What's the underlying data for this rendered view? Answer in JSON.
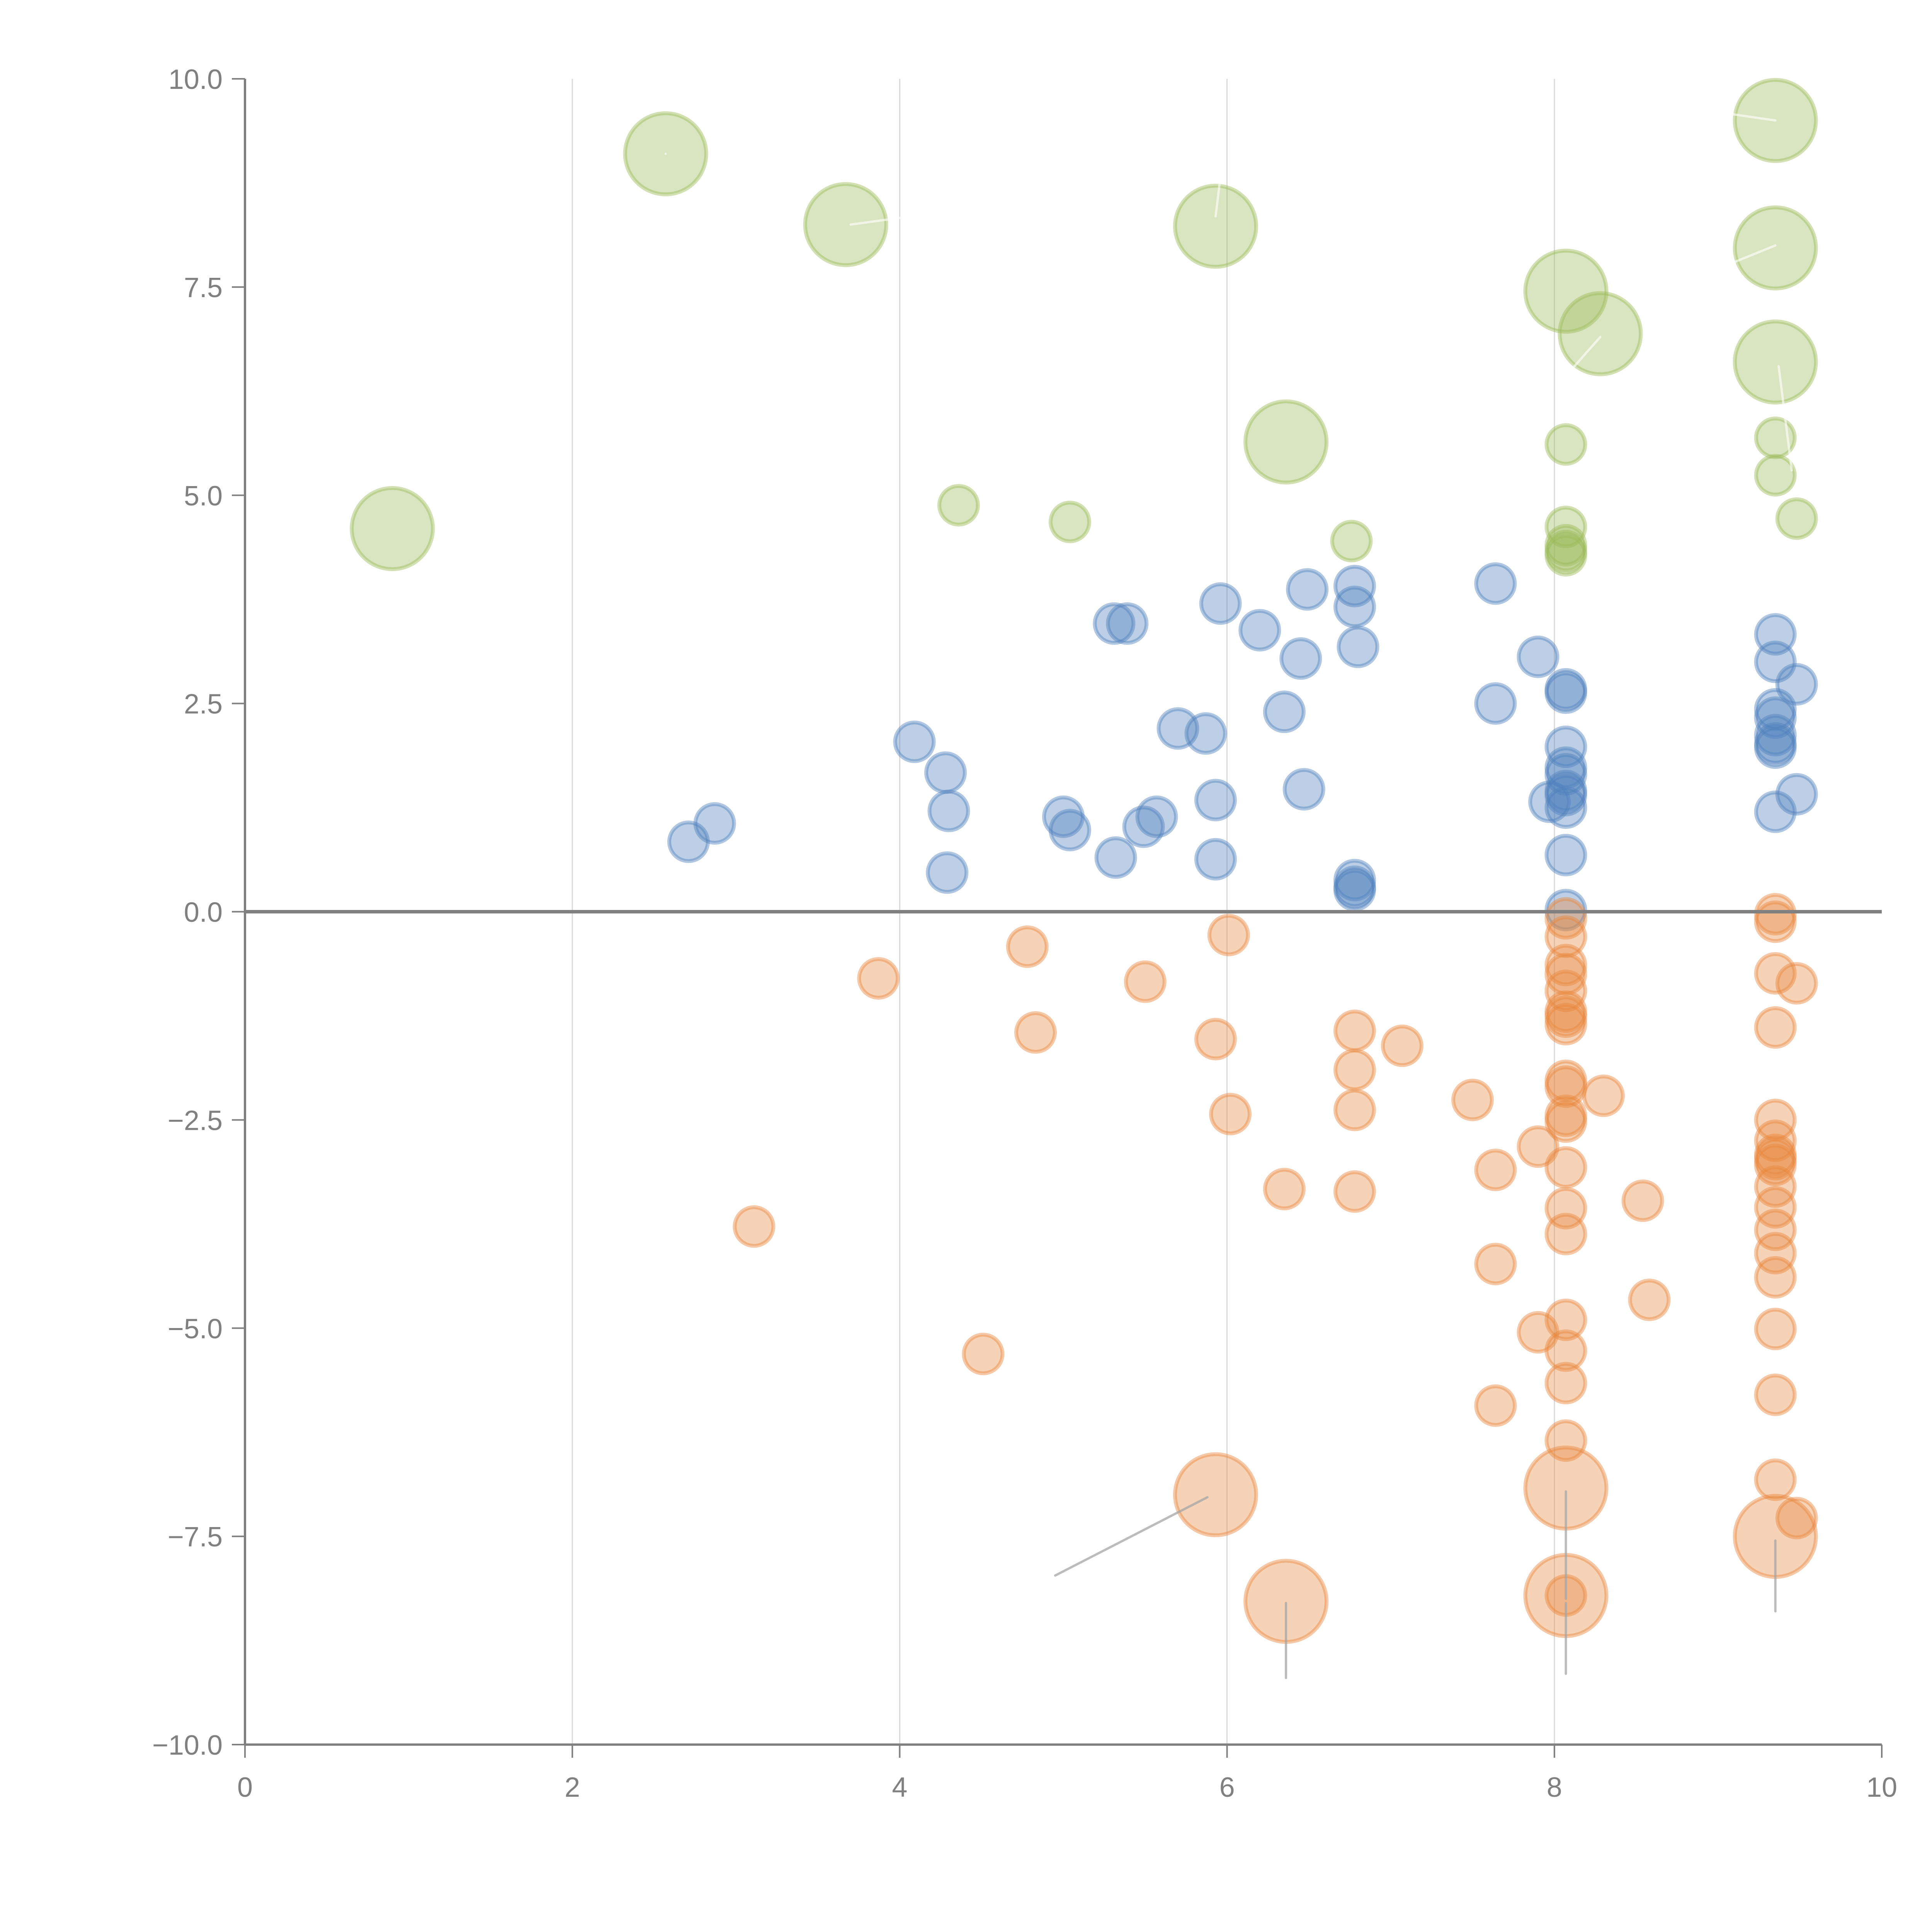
{
  "chart_data": {
    "type": "scatter",
    "subtype": "bubble",
    "title": "",
    "xlabel": "",
    "ylabel": "",
    "xlim": [
      0,
      10
    ],
    "ylim": [
      -10,
      10
    ],
    "x_ticks": [
      "0",
      "2",
      "4",
      "6",
      "8",
      "10"
    ],
    "x_tick_values": [
      0,
      2,
      4,
      6,
      8,
      10
    ],
    "y_ticks": [
      "10.0",
      "7.5",
      "5.0",
      "2.5",
      "0.0",
      "−2.5",
      "−5.0",
      "−7.5",
      "−10.0"
    ],
    "y_tick_values": [
      10,
      7.5,
      5,
      2.5,
      0,
      -2.5,
      -5,
      -7.5,
      -10
    ],
    "grid": {
      "vertical": true,
      "horizontal": false,
      "vertical_at": [
        2,
        4,
        6,
        8
      ]
    },
    "zero_line": true,
    "legend": "none",
    "colors": {
      "green": "#9bbb59",
      "blue": "#4f81bd",
      "orange": "#e8883f",
      "axis": "#808080",
      "grid": "#d9d9d9",
      "leader_grey": "#a6a6a6",
      "leader_white": "#ffffff"
    },
    "series": [
      {
        "name": "green",
        "color": "#9bbb59",
        "points": [
          {
            "x": 0.9,
            "y": 4.6,
            "size": 3
          },
          {
            "x": 2.57,
            "y": 9.1,
            "size": 3
          },
          {
            "x": 3.67,
            "y": 8.25,
            "size": 3
          },
          {
            "x": 4.36,
            "y": 4.88,
            "size": 1
          },
          {
            "x": 5.04,
            "y": 4.68,
            "size": 1
          },
          {
            "x": 5.93,
            "y": 8.23,
            "size": 3
          },
          {
            "x": 6.36,
            "y": 5.64,
            "size": 3
          },
          {
            "x": 6.76,
            "y": 4.45,
            "size": 1
          },
          {
            "x": 8.07,
            "y": 7.45,
            "size": 3
          },
          {
            "x": 8.28,
            "y": 6.94,
            "size": 3
          },
          {
            "x": 8.07,
            "y": 5.61,
            "size": 1
          },
          {
            "x": 8.07,
            "y": 4.62,
            "size": 1
          },
          {
            "x": 8.07,
            "y": 4.4,
            "size": 1
          },
          {
            "x": 8.07,
            "y": 4.33,
            "size": 1
          },
          {
            "x": 8.07,
            "y": 4.28,
            "size": 1
          },
          {
            "x": 9.35,
            "y": 9.5,
            "size": 3
          },
          {
            "x": 9.35,
            "y": 7.97,
            "size": 3
          },
          {
            "x": 9.35,
            "y": 6.6,
            "size": 3
          },
          {
            "x": 9.35,
            "y": 5.69,
            "size": 1
          },
          {
            "x": 9.35,
            "y": 5.24,
            "size": 1
          },
          {
            "x": 9.48,
            "y": 4.72,
            "size": 1
          }
        ]
      },
      {
        "name": "blue",
        "color": "#4f81bd",
        "points": [
          {
            "x": 2.71,
            "y": 0.84,
            "size": 1
          },
          {
            "x": 2.87,
            "y": 1.06,
            "size": 1
          },
          {
            "x": 4.09,
            "y": 2.04,
            "size": 1
          },
          {
            "x": 4.28,
            "y": 1.67,
            "size": 1
          },
          {
            "x": 4.3,
            "y": 1.21,
            "size": 1
          },
          {
            "x": 4.29,
            "y": 0.47,
            "size": 1
          },
          {
            "x": 5.0,
            "y": 1.14,
            "size": 1
          },
          {
            "x": 5.04,
            "y": 0.98,
            "size": 1
          },
          {
            "x": 5.31,
            "y": 3.46,
            "size": 1
          },
          {
            "x": 5.39,
            "y": 3.46,
            "size": 1
          },
          {
            "x": 5.32,
            "y": 0.65,
            "size": 1
          },
          {
            "x": 5.49,
            "y": 1.02,
            "size": 1
          },
          {
            "x": 5.57,
            "y": 1.14,
            "size": 1
          },
          {
            "x": 5.7,
            "y": 2.2,
            "size": 1
          },
          {
            "x": 5.87,
            "y": 2.14,
            "size": 1
          },
          {
            "x": 5.93,
            "y": 1.34,
            "size": 1
          },
          {
            "x": 5.93,
            "y": 0.63,
            "size": 1
          },
          {
            "x": 5.96,
            "y": 3.7,
            "size": 1
          },
          {
            "x": 6.2,
            "y": 3.38,
            "size": 1
          },
          {
            "x": 6.35,
            "y": 2.4,
            "size": 1
          },
          {
            "x": 6.45,
            "y": 3.04,
            "size": 1
          },
          {
            "x": 6.47,
            "y": 1.47,
            "size": 1
          },
          {
            "x": 6.49,
            "y": 3.87,
            "size": 1
          },
          {
            "x": 6.78,
            "y": 3.91,
            "size": 1
          },
          {
            "x": 6.78,
            "y": 3.66,
            "size": 1
          },
          {
            "x": 6.8,
            "y": 3.18,
            "size": 1
          },
          {
            "x": 6.78,
            "y": 0.38,
            "size": 1
          },
          {
            "x": 6.78,
            "y": 0.3,
            "size": 1
          },
          {
            "x": 6.78,
            "y": 0.26,
            "size": 1
          },
          {
            "x": 7.64,
            "y": 3.94,
            "size": 1
          },
          {
            "x": 7.64,
            "y": 2.5,
            "size": 1
          },
          {
            "x": 7.9,
            "y": 3.06,
            "size": 1
          },
          {
            "x": 7.97,
            "y": 1.32,
            "size": 1
          },
          {
            "x": 8.07,
            "y": 2.67,
            "size": 1
          },
          {
            "x": 8.07,
            "y": 2.63,
            "size": 1
          },
          {
            "x": 8.07,
            "y": 1.98,
            "size": 1
          },
          {
            "x": 8.07,
            "y": 1.73,
            "size": 1
          },
          {
            "x": 8.07,
            "y": 1.65,
            "size": 1
          },
          {
            "x": 8.07,
            "y": 1.45,
            "size": 1
          },
          {
            "x": 8.07,
            "y": 1.4,
            "size": 1
          },
          {
            "x": 8.07,
            "y": 1.25,
            "size": 1
          },
          {
            "x": 8.07,
            "y": 0.68,
            "size": 1
          },
          {
            "x": 8.07,
            "y": 0.02,
            "size": 1
          },
          {
            "x": 9.35,
            "y": 3.33,
            "size": 1
          },
          {
            "x": 9.35,
            "y": 3.0,
            "size": 1
          },
          {
            "x": 9.48,
            "y": 2.73,
            "size": 1
          },
          {
            "x": 9.35,
            "y": 2.43,
            "size": 1
          },
          {
            "x": 9.35,
            "y": 2.33,
            "size": 1
          },
          {
            "x": 9.35,
            "y": 2.12,
            "size": 1
          },
          {
            "x": 9.35,
            "y": 2.02,
            "size": 1
          },
          {
            "x": 9.35,
            "y": 1.97,
            "size": 1
          },
          {
            "x": 9.48,
            "y": 1.41,
            "size": 1
          },
          {
            "x": 9.35,
            "y": 1.2,
            "size": 1
          }
        ]
      },
      {
        "name": "orange",
        "color": "#e8883f",
        "points": [
          {
            "x": 3.11,
            "y": -3.78,
            "size": 1
          },
          {
            "x": 3.87,
            "y": -0.8,
            "size": 1
          },
          {
            "x": 4.51,
            "y": -5.31,
            "size": 1
          },
          {
            "x": 4.78,
            "y": -0.42,
            "size": 1
          },
          {
            "x": 4.83,
            "y": -1.45,
            "size": 1
          },
          {
            "x": 5.5,
            "y": -0.84,
            "size": 1
          },
          {
            "x": 5.93,
            "y": -1.53,
            "size": 1
          },
          {
            "x": 5.93,
            "y": -7.0,
            "size": 3
          },
          {
            "x": 6.01,
            "y": -0.28,
            "size": 1
          },
          {
            "x": 6.02,
            "y": -2.43,
            "size": 1
          },
          {
            "x": 6.35,
            "y": -3.33,
            "size": 1
          },
          {
            "x": 6.36,
            "y": -8.28,
            "size": 3
          },
          {
            "x": 6.78,
            "y": -1.43,
            "size": 1
          },
          {
            "x": 6.78,
            "y": -1.9,
            "size": 1
          },
          {
            "x": 6.78,
            "y": -2.38,
            "size": 1
          },
          {
            "x": 6.78,
            "y": -3.36,
            "size": 1
          },
          {
            "x": 7.07,
            "y": -1.61,
            "size": 1
          },
          {
            "x": 7.5,
            "y": -2.26,
            "size": 1
          },
          {
            "x": 7.64,
            "y": -3.1,
            "size": 1
          },
          {
            "x": 7.64,
            "y": -4.23,
            "size": 1
          },
          {
            "x": 7.64,
            "y": -5.93,
            "size": 1
          },
          {
            "x": 7.9,
            "y": -2.82,
            "size": 1
          },
          {
            "x": 7.9,
            "y": -5.05,
            "size": 1
          },
          {
            "x": 8.07,
            "y": -0.08,
            "size": 1
          },
          {
            "x": 8.07,
            "y": -0.3,
            "size": 1
          },
          {
            "x": 8.07,
            "y": -0.64,
            "size": 1
          },
          {
            "x": 8.07,
            "y": -0.75,
            "size": 1
          },
          {
            "x": 8.07,
            "y": -0.95,
            "size": 1
          },
          {
            "x": 8.07,
            "y": -1.2,
            "size": 1
          },
          {
            "x": 8.07,
            "y": -1.26,
            "size": 1
          },
          {
            "x": 8.07,
            "y": -1.35,
            "size": 1
          },
          {
            "x": 8.07,
            "y": -2.03,
            "size": 1
          },
          {
            "x": 8.07,
            "y": -2.1,
            "size": 1
          },
          {
            "x": 8.07,
            "y": -2.45,
            "size": 1
          },
          {
            "x": 8.07,
            "y": -2.52,
            "size": 1
          },
          {
            "x": 8.07,
            "y": -3.07,
            "size": 1
          },
          {
            "x": 8.07,
            "y": -3.56,
            "size": 1
          },
          {
            "x": 8.07,
            "y": -3.87,
            "size": 1
          },
          {
            "x": 8.07,
            "y": -4.9,
            "size": 1
          },
          {
            "x": 8.07,
            "y": -5.27,
            "size": 1
          },
          {
            "x": 8.07,
            "y": -5.66,
            "size": 1
          },
          {
            "x": 8.07,
            "y": -6.35,
            "size": 1
          },
          {
            "x": 8.07,
            "y": -6.92,
            "size": 3
          },
          {
            "x": 8.07,
            "y": -8.21,
            "size": 3
          },
          {
            "x": 8.07,
            "y": -8.21,
            "size": 1
          },
          {
            "x": 8.3,
            "y": -2.21,
            "size": 1
          },
          {
            "x": 8.54,
            "y": -3.47,
            "size": 1
          },
          {
            "x": 8.58,
            "y": -4.66,
            "size": 1
          },
          {
            "x": 9.35,
            "y": -0.03,
            "size": 1
          },
          {
            "x": 9.35,
            "y": -0.12,
            "size": 1
          },
          {
            "x": 9.35,
            "y": -0.74,
            "size": 1
          },
          {
            "x": 9.48,
            "y": -0.86,
            "size": 1
          },
          {
            "x": 9.35,
            "y": -1.39,
            "size": 1
          },
          {
            "x": 9.35,
            "y": -2.5,
            "size": 1
          },
          {
            "x": 9.35,
            "y": -2.75,
            "size": 1
          },
          {
            "x": 9.35,
            "y": -2.92,
            "size": 1
          },
          {
            "x": 9.35,
            "y": -2.97,
            "size": 1
          },
          {
            "x": 9.35,
            "y": -3.04,
            "size": 1
          },
          {
            "x": 9.35,
            "y": -3.3,
            "size": 1
          },
          {
            "x": 9.35,
            "y": -3.55,
            "size": 1
          },
          {
            "x": 9.35,
            "y": -3.82,
            "size": 1
          },
          {
            "x": 9.35,
            "y": -4.1,
            "size": 1
          },
          {
            "x": 9.35,
            "y": -4.39,
            "size": 1
          },
          {
            "x": 9.35,
            "y": -5.01,
            "size": 1
          },
          {
            "x": 9.35,
            "y": -5.8,
            "size": 1
          },
          {
            "x": 9.35,
            "y": -6.82,
            "size": 1
          },
          {
            "x": 9.35,
            "y": -7.5,
            "size": 3
          },
          {
            "x": 9.48,
            "y": -7.28,
            "size": 1
          }
        ]
      }
    ],
    "annotations": [
      {
        "from": [
          2.57,
          9.1
        ],
        "to": [
          2.57,
          9.1
        ],
        "color": "#ffffff"
      },
      {
        "from": [
          3.7,
          8.25
        ],
        "to": [
          4.0,
          8.33
        ],
        "color": "#ffffff"
      },
      {
        "from": [
          5.93,
          8.35
        ],
        "to": [
          5.98,
          9.15
        ],
        "color": "#ffffff"
      },
      {
        "from": [
          8.1,
          6.5
        ],
        "to": [
          8.28,
          6.9
        ],
        "color": "#ffffff"
      },
      {
        "from": [
          9.35,
          9.5
        ],
        "to": [
          9.0,
          9.6
        ],
        "color": "#ffffff"
      },
      {
        "from": [
          9.35,
          8.0
        ],
        "to": [
          9.1,
          7.8
        ],
        "color": "#ffffff"
      },
      {
        "from": [
          9.37,
          6.55
        ],
        "to": [
          9.45,
          5.3
        ],
        "color": "#ffffff"
      },
      {
        "from": [
          5.88,
          -7.03
        ],
        "to": [
          4.95,
          -7.97
        ],
        "color": "#a6a6a6"
      },
      {
        "from": [
          6.36,
          -8.3
        ],
        "to": [
          6.36,
          -9.2
        ],
        "color": "#a6a6a6"
      },
      {
        "from": [
          8.07,
          -6.96
        ],
        "to": [
          8.07,
          -8.25
        ],
        "color": "#a6a6a6"
      },
      {
        "from": [
          8.07,
          -8.3
        ],
        "to": [
          8.07,
          -9.15
        ],
        "color": "#a6a6a6"
      },
      {
        "from": [
          9.35,
          -7.55
        ],
        "to": [
          9.35,
          -8.4
        ],
        "color": "#a6a6a6"
      }
    ]
  }
}
